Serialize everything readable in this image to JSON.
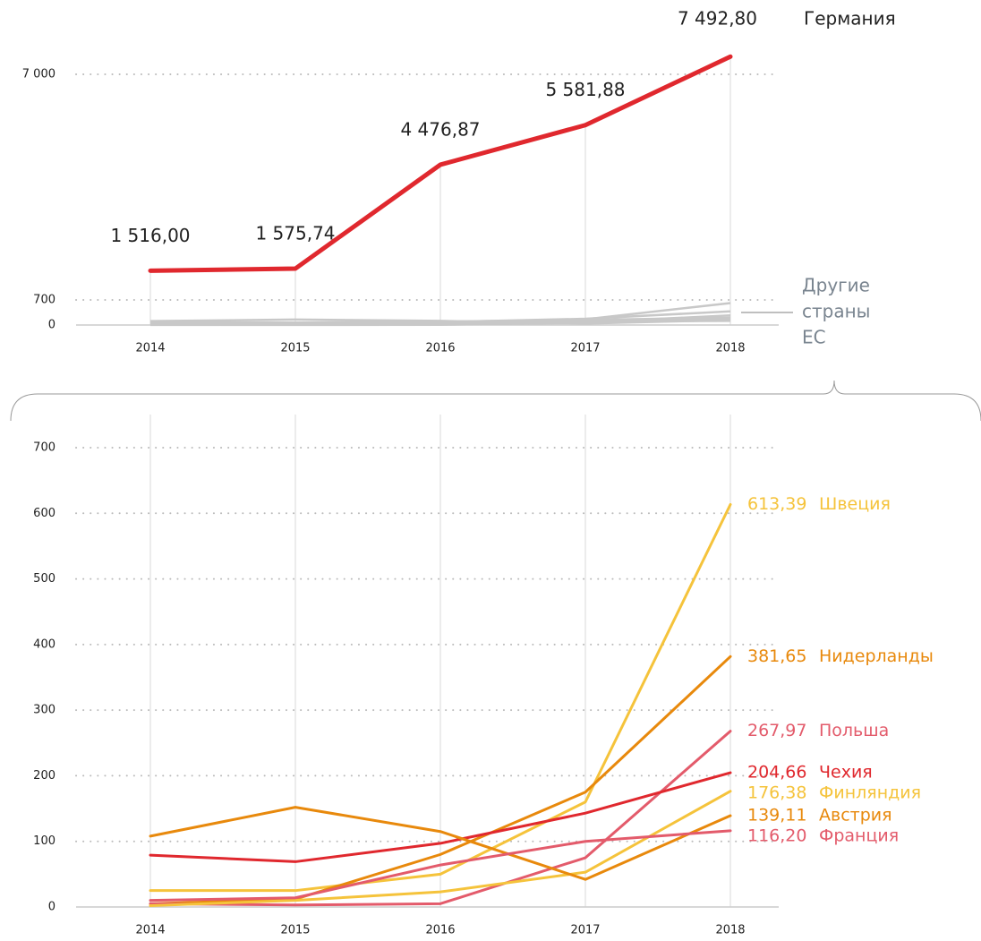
{
  "chart_data": [
    {
      "type": "line",
      "categories": [
        "2014",
        "2015",
        "2016",
        "2017",
        "2018"
      ],
      "series": [
        {
          "name": "Германия",
          "color": "#e0282e",
          "values": [
            1516.0,
            1575.74,
            4476.87,
            5581.88,
            7492.8
          ],
          "value_labels": [
            "1 516,00",
            "1 575,74",
            "4 476,87",
            "5 581,88",
            "7 492,80"
          ]
        }
      ],
      "others_color": "#c8c8c8",
      "annotation": [
        "Другие",
        "страны",
        "ЕС"
      ],
      "ylim": [
        0,
        7500
      ],
      "yticks": [
        0,
        700,
        {
          "value": 7000,
          "label": "7 000"
        }
      ],
      "grid": true
    },
    {
      "type": "line",
      "categories": [
        "2014",
        "2015",
        "2016",
        "2017",
        "2018"
      ],
      "series": [
        {
          "name": "Швеция",
          "color": "#f5c33b",
          "values": [
            25,
            25,
            50,
            160,
            613.39
          ],
          "value_labels": [
            null,
            null,
            null,
            null,
            "613,39"
          ]
        },
        {
          "name": "Нидерланды",
          "color": "#e8890c",
          "values": [
            5,
            12,
            80,
            175,
            381.65
          ],
          "value_labels": [
            null,
            null,
            null,
            null,
            "381,65"
          ]
        },
        {
          "name": "Польша",
          "color": "#e35b6b",
          "values": [
            5,
            3,
            5,
            75,
            267.97
          ],
          "value_labels": [
            null,
            null,
            null,
            null,
            "267,97"
          ]
        },
        {
          "name": "Чехия",
          "color": "#e0282e",
          "values": [
            79,
            69,
            97,
            143,
            204.66
          ],
          "value_labels": [
            null,
            null,
            null,
            null,
            "204,66"
          ]
        },
        {
          "name": "Финляндия",
          "color": "#f5c33b",
          "values": [
            2,
            10,
            23,
            53,
            176.38
          ],
          "value_labels": [
            null,
            null,
            null,
            null,
            "176,38"
          ]
        },
        {
          "name": "Австрия",
          "color": "#e8890c",
          "values": [
            108,
            152,
            115,
            42,
            139.11
          ],
          "value_labels": [
            null,
            null,
            null,
            null,
            "139,11"
          ]
        },
        {
          "name": "Франция",
          "color": "#e35b6b",
          "values": [
            10,
            14,
            64,
            100,
            116.2
          ],
          "value_labels": [
            null,
            null,
            null,
            null,
            "116,20"
          ]
        }
      ],
      "ylim": [
        0,
        700
      ],
      "yticks": [
        0,
        100,
        200,
        300,
        400,
        500,
        600,
        700
      ],
      "grid": true
    }
  ]
}
